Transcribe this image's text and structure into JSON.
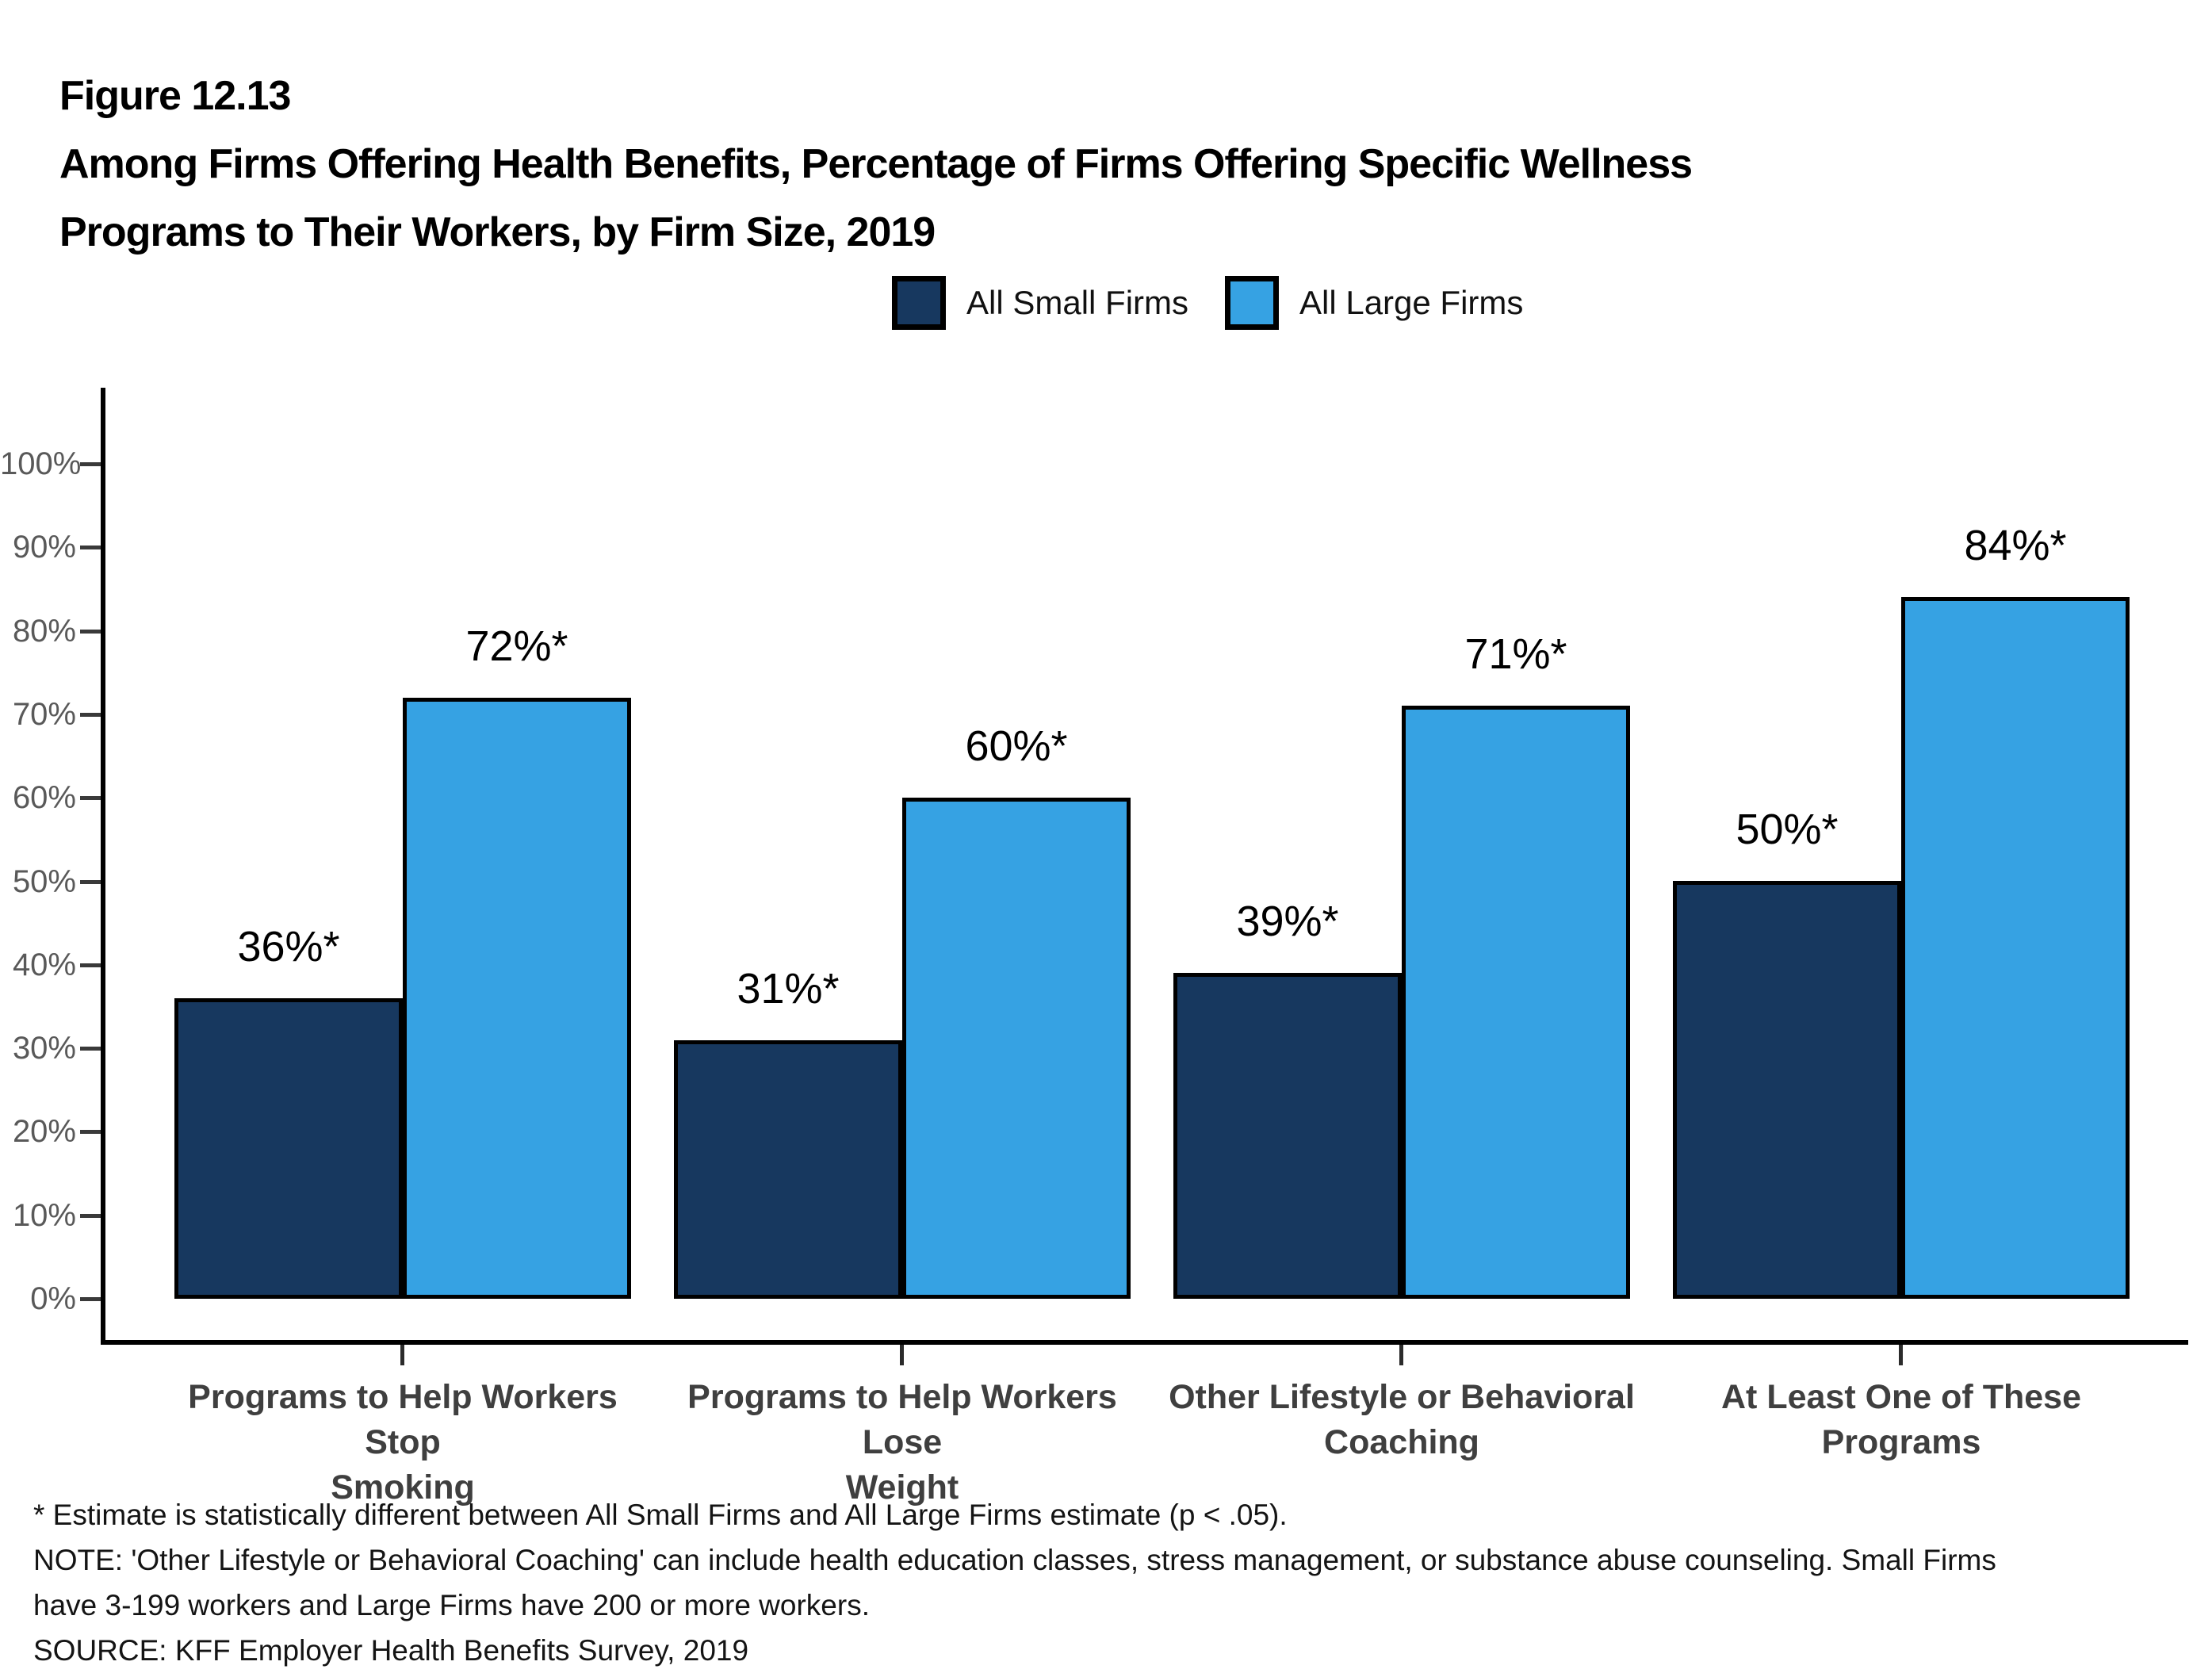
{
  "figure": {
    "label": "Figure 12.13",
    "title_line1": "Among Firms Offering Health Benefits, Percentage of Firms Offering Specific Wellness",
    "title_line2": "Programs to Their Workers, by Firm Size, 2019"
  },
  "chart_data": {
    "type": "bar",
    "title": "Among Firms Offering Health Benefits, Percentage of Firms Offering Specific Wellness Programs to Their Workers, by Firm Size, 2019",
    "categories": [
      "Programs to Help Workers Stop\nSmoking",
      "Programs to Help Workers Lose\nWeight",
      "Other Lifestyle or Behavioral\nCoaching",
      "At Least One of These\nPrograms"
    ],
    "series": [
      {
        "name": "All Small Firms",
        "color": "#17385F",
        "values": [
          36,
          31,
          39,
          50
        ],
        "labels": [
          "36%*",
          "31%*",
          "39%*",
          "50%*"
        ]
      },
      {
        "name": "All Large Firms",
        "color": "#36A2E3",
        "values": [
          72,
          60,
          71,
          84
        ],
        "labels": [
          "72%*",
          "60%*",
          "71%*",
          "84%*"
        ]
      }
    ],
    "xlabel": "",
    "ylabel": "",
    "ylim": [
      0,
      100
    ],
    "yticks": [
      0,
      10,
      20,
      30,
      40,
      50,
      60,
      70,
      80,
      90,
      100
    ],
    "ytick_labels": [
      "0%",
      "10%",
      "20%",
      "30%",
      "40%",
      "50%",
      "60%",
      "70%",
      "80%",
      "90%",
      "100%"
    ],
    "grid": false,
    "legend_position": "top-center"
  },
  "footnotes": {
    "lines": [
      "* Estimate is statistically different between All Small Firms and All Large Firms estimate (p < .05).",
      "NOTE: 'Other Lifestyle or Behavioral Coaching' can include health education classes, stress management, or substance abuse counseling. Small Firms",
      "have 3-199 workers and Large Firms have 200 or more workers.",
      "SOURCE: KFF Employer Health Benefits Survey, 2019"
    ]
  }
}
